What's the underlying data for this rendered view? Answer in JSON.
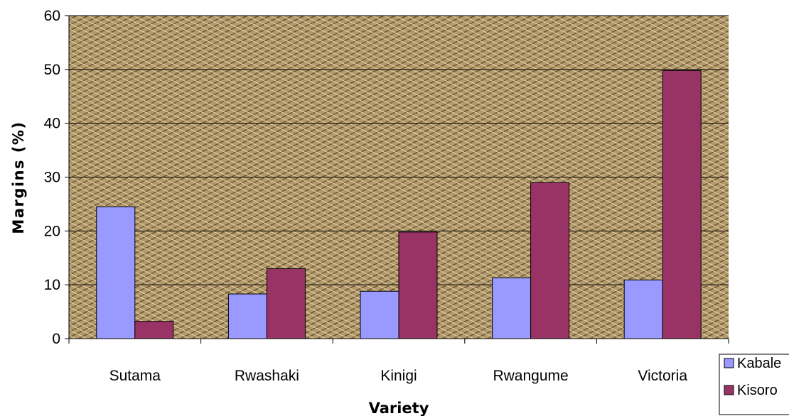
{
  "chart_data": {
    "type": "bar",
    "title": "",
    "xlabel": "Variety",
    "ylabel": "Margins (%)",
    "ylim": [
      0,
      60
    ],
    "yticks": [
      0,
      10,
      20,
      30,
      40,
      50,
      60
    ],
    "grid": true,
    "legend_position": "bottom-right",
    "categories": [
      "Sutama",
      "Rwashaki",
      "Kinigi",
      "Rwangume",
      "Victoria"
    ],
    "series": [
      {
        "name": "Kabale",
        "color": "#9999ff",
        "values": [
          24.5,
          8.3,
          8.8,
          11.3,
          10.9
        ]
      },
      {
        "name": "Kisoro",
        "color": "#993366",
        "values": [
          3.2,
          13.0,
          19.8,
          29.0,
          49.8
        ]
      }
    ],
    "plot_background": "#b59a70"
  }
}
